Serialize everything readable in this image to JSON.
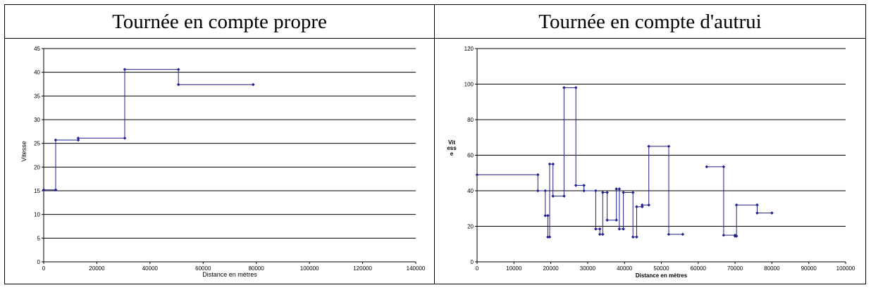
{
  "chart_data": [
    {
      "type": "line",
      "title": "Tournée en compte propre",
      "xlabel": "Distance en mètres",
      "ylabel": "Vitesse",
      "xlim": [
        0,
        140000
      ],
      "ylim": [
        0,
        45
      ],
      "xticks": [
        0,
        20000,
        40000,
        60000,
        80000,
        100000,
        120000,
        140000
      ],
      "yticks": [
        0,
        5,
        10,
        15,
        20,
        25,
        30,
        35,
        40,
        45
      ],
      "grid": "horizontal",
      "color": "#1f1f8f",
      "series": [
        {
          "points": [
            [
              0,
              15.2
            ],
            [
              4500,
              15.2
            ],
            [
              4500,
              25.7
            ],
            [
              13000,
              25.7
            ],
            [
              13000,
              26.1
            ],
            [
              30500,
              26.1
            ],
            [
              30500,
              40.6
            ],
            [
              50700,
              40.6
            ],
            [
              50700,
              37.4
            ],
            [
              78800,
              37.4
            ]
          ]
        }
      ]
    },
    {
      "type": "line",
      "title": "Tournée en compte d'autrui",
      "xlabel": "Distance en mètres",
      "ylabel": "Vit\ness\ne",
      "xlim": [
        0,
        100000
      ],
      "ylim": [
        0,
        120
      ],
      "xticks": [
        0,
        10000,
        20000,
        30000,
        40000,
        50000,
        60000,
        70000,
        80000,
        90000,
        100000
      ],
      "yticks": [
        0,
        20,
        40,
        60,
        80,
        100,
        120
      ],
      "grid": "horizontal",
      "color": "#1f1f8f",
      "series": [
        {
          "points": [
            [
              0,
              49
            ],
            [
              16500,
              49
            ],
            [
              16500,
              40
            ],
            [
              18500,
              40
            ],
            [
              18500,
              26
            ],
            [
              19200,
              26
            ],
            [
              19200,
              14
            ],
            [
              19700,
              14
            ],
            [
              19700,
              55
            ],
            [
              20600,
              55
            ],
            [
              20600,
              37
            ],
            [
              23600,
              37
            ],
            [
              23600,
              98
            ],
            [
              26800,
              98
            ],
            [
              26800,
              43
            ],
            [
              29000,
              43
            ],
            [
              29000,
              40
            ],
            [
              32200,
              40
            ],
            [
              32200,
              18.5
            ],
            [
              33300,
              18.5
            ],
            [
              33300,
              15.5
            ],
            [
              34100,
              15.5
            ],
            [
              34100,
              39
            ],
            [
              35300,
              39
            ],
            [
              35300,
              23.5
            ],
            [
              37800,
              23.5
            ],
            [
              37800,
              41
            ],
            [
              38600,
              41
            ],
            [
              38600,
              18.5
            ],
            [
              39700,
              18.5
            ],
            [
              39700,
              39
            ],
            [
              42300,
              39
            ],
            [
              42300,
              14
            ],
            [
              43300,
              14
            ],
            [
              43300,
              31
            ],
            [
              44800,
              31
            ],
            [
              44800,
              32
            ],
            [
              46600,
              32
            ],
            [
              46600,
              65
            ],
            [
              52000,
              65
            ],
            [
              52000,
              15.5
            ],
            [
              55800,
              15.5
            ]
          ]
        },
        {
          "points": [
            [
              62300,
              53.5
            ],
            [
              66900,
              53.5
            ],
            [
              66900,
              15
            ],
            [
              70000,
              15
            ],
            [
              70000,
              14.5
            ],
            [
              70400,
              14.5
            ],
            [
              70400,
              32
            ],
            [
              76000,
              32
            ],
            [
              76000,
              27.5
            ],
            [
              80000,
              27.5
            ]
          ]
        }
      ]
    }
  ]
}
